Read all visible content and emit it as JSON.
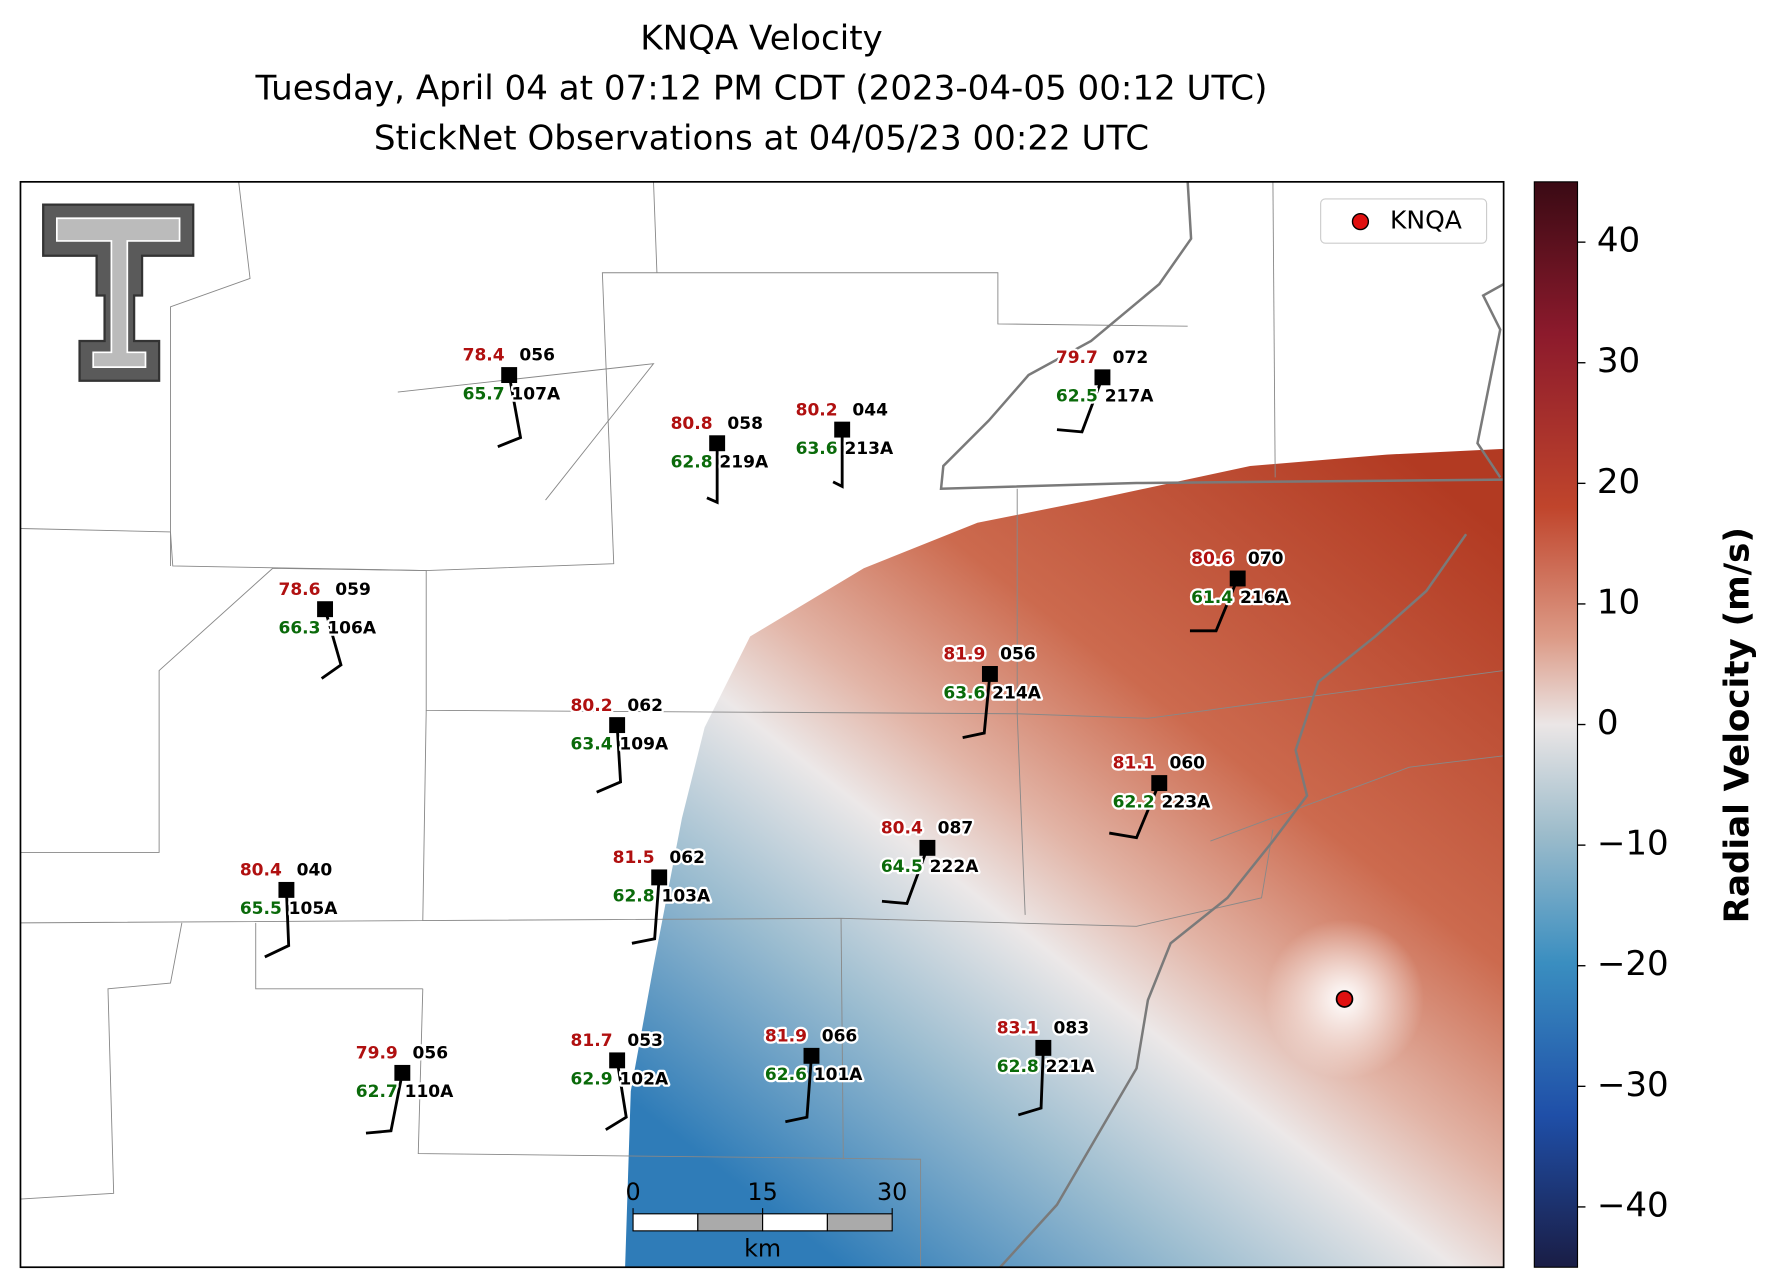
{
  "title": [
    "KNQA Velocity",
    "Tuesday, April 04 at 07:12 PM CDT (2023-04-05 00:12 UTC)",
    "StickNet Observations at 04/05/23 00:22 UTC"
  ],
  "legend": {
    "label": "KNQA",
    "color": "#e01010"
  },
  "colorbar": {
    "label": "Radial Velocity (m/s)",
    "lim": [
      -45,
      45
    ],
    "ticks": [
      40,
      30,
      20,
      10,
      0,
      {
        "value": -10,
        "label": "−10"
      },
      {
        "value": -20,
        "label": "−20"
      },
      {
        "value": -30,
        "label": "−30"
      },
      {
        "value": -40,
        "label": "−40"
      }
    ]
  },
  "scalebar": {
    "ticks": [
      0,
      15,
      30
    ],
    "unit": "km"
  },
  "stations": [
    {
      "id": "107A",
      "temperature": 78.4,
      "dewpoint": 65.7,
      "code": "056"
    },
    {
      "id": "219A",
      "temperature": 80.8,
      "dewpoint": 62.8,
      "code": "058"
    },
    {
      "id": "213A",
      "temperature": 80.2,
      "dewpoint": 63.6,
      "code": "044"
    },
    {
      "id": "217A",
      "temperature": 79.7,
      "dewpoint": 62.5,
      "code": "072"
    },
    {
      "id": "106A",
      "temperature": 78.6,
      "dewpoint": 66.3,
      "code": "059"
    },
    {
      "id": "216A",
      "temperature": 80.6,
      "dewpoint": 61.4,
      "code": "070"
    },
    {
      "id": "214A",
      "temperature": 81.9,
      "dewpoint": 63.6,
      "code": "056"
    },
    {
      "id": "109A",
      "temperature": 80.2,
      "dewpoint": 63.4,
      "code": "062"
    },
    {
      "id": "223A",
      "temperature": 81.1,
      "dewpoint": 62.2,
      "code": "060"
    },
    {
      "id": "222A",
      "temperature": 80.4,
      "dewpoint": 64.5,
      "code": "087"
    },
    {
      "id": "105A",
      "temperature": 80.4,
      "dewpoint": 65.5,
      "code": "040"
    },
    {
      "id": "103A",
      "temperature": 81.5,
      "dewpoint": 62.8,
      "code": "062"
    },
    {
      "id": "110A",
      "temperature": 79.9,
      "dewpoint": 62.7,
      "code": "056"
    },
    {
      "id": "102A",
      "temperature": 81.7,
      "dewpoint": 62.9,
      "code": "053"
    },
    {
      "id": "101A",
      "temperature": 81.9,
      "dewpoint": 62.6,
      "code": "066"
    },
    {
      "id": "221A",
      "temperature": 83.1,
      "dewpoint": 62.8,
      "code": "083"
    }
  ]
}
